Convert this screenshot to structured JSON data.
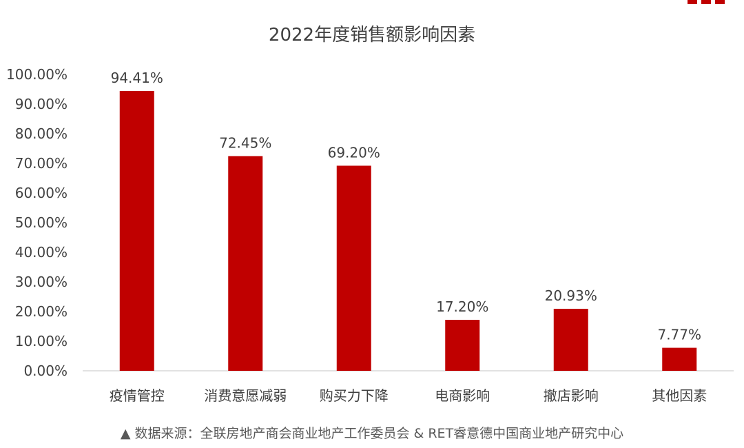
{
  "chart_data": {
    "type": "bar",
    "title": "2022年度销售额影响因素",
    "categories": [
      "疫情管控",
      "消费意愿减弱",
      "购买力下降",
      "电商影响",
      "撤店影响",
      "其他因素"
    ],
    "values": [
      94.41,
      72.45,
      69.2,
      17.2,
      20.93,
      7.77
    ],
    "data_labels": [
      "94.41%",
      "72.45%",
      "69.20%",
      "17.20%",
      "20.93%",
      "7.77%"
    ],
    "y_ticks": [
      "0.00%",
      "10.00%",
      "20.00%",
      "30.00%",
      "40.00%",
      "50.00%",
      "60.00%",
      "70.00%",
      "80.00%",
      "90.00%",
      "100.00%"
    ],
    "ylim": [
      0,
      100
    ],
    "grid": false,
    "bar_color": "#c00000",
    "xlabel": "",
    "ylabel": ""
  },
  "source": "▲ 数据来源：全联房地产商会商业地产工作委员会 & RET睿意德中国商业地产研究中心"
}
